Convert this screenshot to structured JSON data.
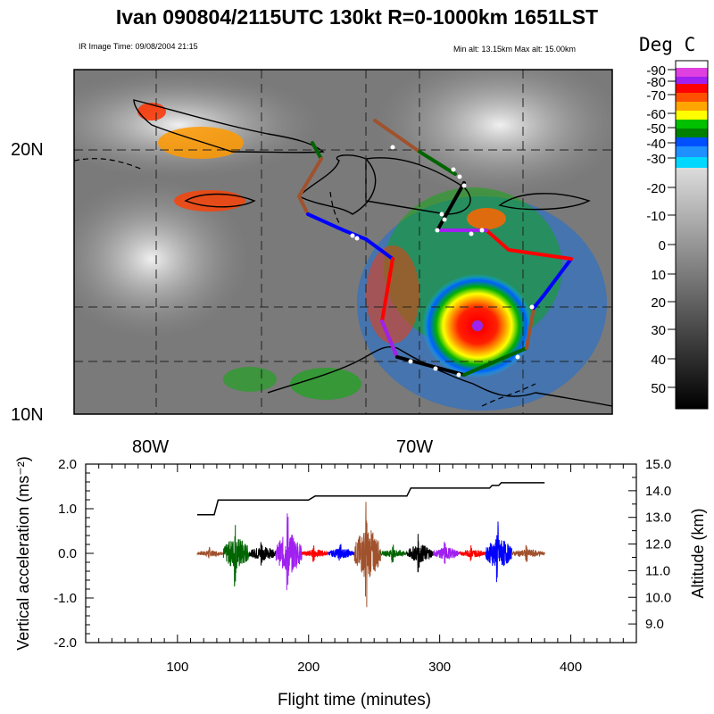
{
  "title": "Ivan 090804/2115UTC 130kt  R=0-1000km 1651LST",
  "ir_time": "IR Image Time: 09/08/2004 21:15",
  "alt_range": "Min alt: 13.15km  Max alt: 15.00km",
  "colorbar": {
    "unit": "Deg C",
    "labels": [
      "-90",
      "-80",
      "-70",
      "-60",
      "-50",
      "-40",
      "-30",
      "-20",
      "-10",
      "0",
      "10",
      "20",
      "30",
      "40",
      "50"
    ]
  },
  "map": {
    "lat_labels": [
      "20N",
      "10N"
    ],
    "lon_labels": [
      "80W",
      "70W"
    ]
  },
  "chart_data": {
    "type": "line",
    "xlabel": "Flight time (minutes)",
    "ylabel_left": "Vertical acceleration (ms⁻²)",
    "ylabel_right": "Altitude (km)",
    "xlim": [
      30,
      450
    ],
    "ylim_left": [
      -2.0,
      2.0
    ],
    "ylim_right": [
      8.3,
      15.0
    ],
    "x_ticks": [
      "100",
      "200",
      "300",
      "400"
    ],
    "y_ticks_left": [
      "2.0",
      "1.0",
      "0.0",
      "-1.0",
      "-2.0"
    ],
    "y_ticks_right": [
      "15.0",
      "14.0",
      "13.0",
      "12.0",
      "11.0",
      "10.0",
      "9.0"
    ],
    "altitude": {
      "x": [
        115,
        128,
        131,
        200,
        205,
        275,
        278,
        338,
        340,
        345,
        347,
        380
      ],
      "y": [
        13.1,
        13.1,
        13.65,
        13.65,
        13.8,
        13.8,
        14.1,
        14.1,
        14.2,
        14.2,
        14.3,
        14.3
      ]
    },
    "acceleration_segments": [
      {
        "start": 115,
        "end": 135,
        "color": "#a0522d",
        "amplitude": 0.15
      },
      {
        "start": 135,
        "end": 155,
        "color": "#006400",
        "amplitude": 0.8
      },
      {
        "start": 155,
        "end": 175,
        "color": "#000000",
        "amplitude": 0.35
      },
      {
        "start": 175,
        "end": 195,
        "color": "#a020f0",
        "amplitude": 1.0
      },
      {
        "start": 195,
        "end": 215,
        "color": "#ff0000",
        "amplitude": 0.2
      },
      {
        "start": 215,
        "end": 235,
        "color": "#0000ff",
        "amplitude": 0.25
      },
      {
        "start": 235,
        "end": 255,
        "color": "#a0522d",
        "amplitude": 1.25
      },
      {
        "start": 255,
        "end": 275,
        "color": "#006400",
        "amplitude": 0.2
      },
      {
        "start": 275,
        "end": 295,
        "color": "#000000",
        "amplitude": 0.45
      },
      {
        "start": 295,
        "end": 315,
        "color": "#a020f0",
        "amplitude": 0.3
      },
      {
        "start": 315,
        "end": 335,
        "color": "#ff0000",
        "amplitude": 0.2
      },
      {
        "start": 335,
        "end": 355,
        "color": "#0000ff",
        "amplitude": 0.75
      },
      {
        "start": 355,
        "end": 380,
        "color": "#a0522d",
        "amplitude": 0.2
      }
    ]
  }
}
